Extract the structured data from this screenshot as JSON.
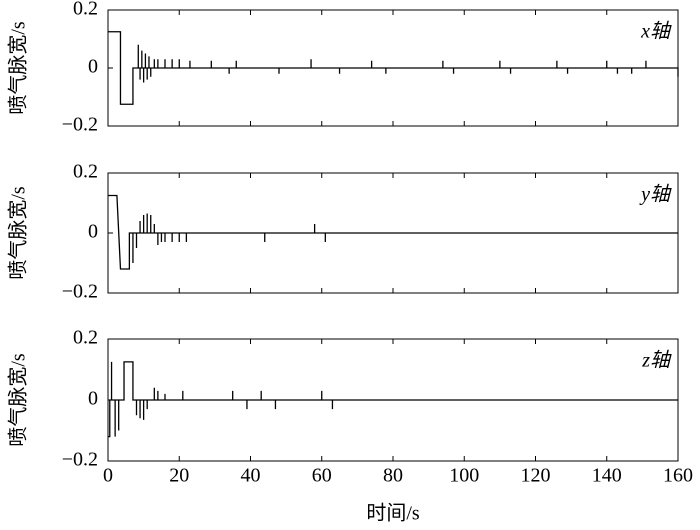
{
  "chart_data": [
    {
      "type": "line",
      "ylabel": "喷气脉宽/s",
      "annotation": "x轴",
      "color": "#000000",
      "xtick_labels": false,
      "xlim": [
        0,
        160
      ],
      "xticks": [
        0,
        20,
        40,
        60,
        80,
        100,
        120,
        140,
        160
      ],
      "ylim": [
        -0.2,
        0.2
      ],
      "yticks": [
        {
          "value": -0.2,
          "label": "−0.2"
        },
        0,
        0.2
      ],
      "x": [
        0,
        3.5,
        3.5,
        7,
        7,
        8.5,
        8.5,
        8.5,
        9,
        9,
        9,
        9.5,
        9.5,
        9.5,
        10,
        10,
        10,
        10.5,
        10.5,
        10.5,
        11,
        11,
        11,
        11.5,
        11.5,
        11.5,
        12,
        12,
        12,
        13,
        13,
        13,
        14,
        14,
        14,
        16,
        16,
        16,
        18,
        18,
        18,
        20,
        20,
        20,
        23,
        23,
        23,
        29,
        29,
        29,
        34,
        34,
        34,
        36,
        36,
        36,
        48,
        48,
        48,
        57,
        57,
        57,
        65,
        65,
        65,
        74,
        74,
        74,
        78,
        78,
        78,
        94,
        94,
        94,
        97,
        97,
        97,
        110,
        110,
        110,
        113,
        113,
        113,
        126,
        126,
        126,
        129,
        129,
        129,
        140,
        140,
        140,
        143,
        143,
        143,
        147,
        147,
        147,
        151,
        151,
        151,
        160,
        160
      ],
      "values": [
        0.125,
        0.125,
        -0.125,
        -0.125,
        0,
        0,
        0.08,
        0,
        0,
        -0.04,
        0,
        0,
        0.06,
        0,
        0,
        -0.05,
        0,
        0,
        0.05,
        0,
        0,
        -0.04,
        0,
        0,
        0.04,
        0,
        0,
        -0.03,
        0,
        0,
        0.03,
        0,
        0,
        0.03,
        0,
        0,
        0.03,
        0,
        0,
        0.03,
        0,
        0,
        0.03,
        0,
        0,
        0.025,
        0,
        0,
        0.025,
        0,
        0,
        -0.02,
        0,
        0,
        0.025,
        0,
        0,
        -0.02,
        0,
        0,
        0.03,
        0,
        0,
        -0.02,
        0,
        0,
        0.025,
        0,
        0,
        -0.02,
        0,
        0,
        0.025,
        0,
        0,
        -0.02,
        0,
        0,
        0.025,
        0,
        0,
        -0.02,
        0,
        0,
        0.025,
        0,
        0,
        -0.02,
        0,
        0,
        0.025,
        0,
        0,
        -0.02,
        0,
        0,
        -0.02,
        0,
        0,
        0.025,
        0,
        0,
        -0.03
      ]
    },
    {
      "type": "line",
      "ylabel": "喷气脉宽/s",
      "annotation": "y轴",
      "color": "#000000",
      "xtick_labels": false,
      "xlim": [
        0,
        160
      ],
      "xticks": [
        0,
        20,
        40,
        60,
        80,
        100,
        120,
        140,
        160
      ],
      "ylim": [
        -0.2,
        0.2
      ],
      "yticks": [
        {
          "value": -0.2,
          "label": "−0.2"
        },
        0,
        0.2
      ],
      "x": [
        0,
        2.5,
        3.5,
        6,
        6,
        7,
        7,
        7,
        8,
        8,
        8,
        9,
        9,
        9,
        10,
        10,
        10,
        11,
        11,
        11,
        12,
        12,
        12,
        13,
        13,
        13,
        14,
        14,
        14,
        15,
        15,
        15,
        16,
        16,
        16,
        18,
        18,
        18,
        20,
        20,
        20,
        22,
        22,
        22,
        44,
        44,
        44,
        58,
        58,
        58,
        61,
        61,
        61,
        160
      ],
      "values": [
        0.125,
        0.125,
        -0.12,
        -0.12,
        0,
        0,
        -0.1,
        0,
        0,
        -0.05,
        0,
        0,
        0.04,
        0,
        0,
        0.06,
        0,
        0,
        0.065,
        0,
        0,
        0.06,
        0,
        0,
        0.03,
        0,
        0,
        -0.04,
        0,
        0,
        -0.03,
        0,
        0,
        -0.03,
        0,
        0,
        -0.03,
        0,
        0,
        -0.03,
        0,
        0,
        -0.03,
        0,
        0,
        -0.03,
        0,
        0,
        0.03,
        0,
        0,
        -0.03,
        0,
        0
      ]
    },
    {
      "type": "line",
      "ylabel": "喷气脉宽/s",
      "xlabel": "时间/s",
      "annotation": "z轴",
      "color": "#000000",
      "xtick_labels": true,
      "xlim": [
        0,
        160
      ],
      "xticks": [
        0,
        20,
        40,
        60,
        80,
        100,
        120,
        140,
        160
      ],
      "ylim": [
        -0.2,
        0.2
      ],
      "yticks": [
        {
          "value": -0.2,
          "label": "−0.2"
        },
        0,
        0.2
      ],
      "x": [
        0,
        0.5,
        0.5,
        1,
        1,
        1,
        2,
        2,
        2,
        3,
        3,
        3,
        4.5,
        4.5,
        7,
        7,
        8,
        8,
        8,
        9,
        9,
        9,
        10,
        10,
        10,
        11,
        11,
        11,
        13,
        13,
        13,
        14,
        14,
        14,
        16,
        16,
        16,
        21,
        21,
        21,
        35,
        35,
        35,
        39,
        39,
        39,
        43,
        43,
        43,
        47,
        47,
        47,
        60,
        60,
        60,
        63,
        63,
        63,
        160
      ],
      "values": [
        -0.12,
        -0.12,
        0,
        0,
        0.125,
        0,
        0,
        -0.12,
        0,
        0,
        -0.1,
        0,
        0,
        0.125,
        0.125,
        0,
        0,
        -0.05,
        0,
        0,
        -0.06,
        0,
        0,
        -0.065,
        0,
        0,
        -0.03,
        0,
        0,
        0.04,
        0,
        0,
        0.03,
        0,
        0,
        0.02,
        0,
        0,
        0.03,
        0,
        0,
        0.03,
        0,
        0,
        -0.03,
        0,
        0,
        0.03,
        0,
        0,
        -0.03,
        0,
        0,
        0.03,
        0,
        0,
        -0.03,
        0,
        0
      ]
    }
  ]
}
